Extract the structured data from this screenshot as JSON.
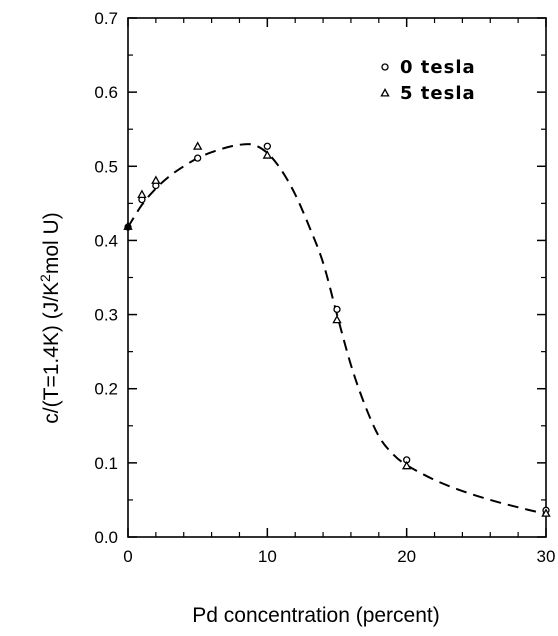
{
  "chart_data": {
    "type": "scatter",
    "xlabel": "Pd concentration (percent)",
    "ylabel_main": "c/(T=1.4K)  (J/K",
    "ylabel_sup": "2",
    "ylabel_tail": "mol U)",
    "xlim": [
      0,
      30
    ],
    "ylim": [
      0.0,
      0.7
    ],
    "xticks": [
      0,
      10,
      20,
      30
    ],
    "yticks": [
      "0.0",
      "0.1",
      "0.2",
      "0.3",
      "0.4",
      "0.5",
      "0.6",
      "0.7"
    ],
    "grid": false,
    "legend_position": "top-right",
    "series": [
      {
        "name": "0 tesla",
        "marker": "circle",
        "x": [
          0,
          1,
          2,
          5,
          10,
          15,
          20,
          30
        ],
        "y": [
          0.418,
          0.455,
          0.474,
          0.511,
          0.527,
          0.307,
          0.104,
          0.036
        ]
      },
      {
        "name": "5 tesla",
        "marker": "triangle",
        "x": [
          0,
          1,
          2,
          5,
          10,
          15,
          20,
          30
        ],
        "y": [
          0.419,
          0.462,
          0.481,
          0.527,
          0.515,
          0.293,
          0.096,
          0.032
        ]
      }
    ],
    "fit_curve": {
      "style": "dashed",
      "x": [
        0,
        1,
        2,
        3,
        4,
        5,
        6,
        7,
        8,
        9,
        10,
        11,
        12,
        13,
        14,
        15,
        16,
        17,
        18,
        19,
        20,
        22,
        24,
        26,
        28,
        30
      ],
      "y": [
        0.418,
        0.448,
        0.47,
        0.487,
        0.5,
        0.511,
        0.519,
        0.525,
        0.529,
        0.529,
        0.518,
        0.495,
        0.462,
        0.419,
        0.37,
        0.3,
        0.232,
        0.178,
        0.136,
        0.112,
        0.097,
        0.077,
        0.062,
        0.05,
        0.04,
        0.031
      ]
    }
  }
}
